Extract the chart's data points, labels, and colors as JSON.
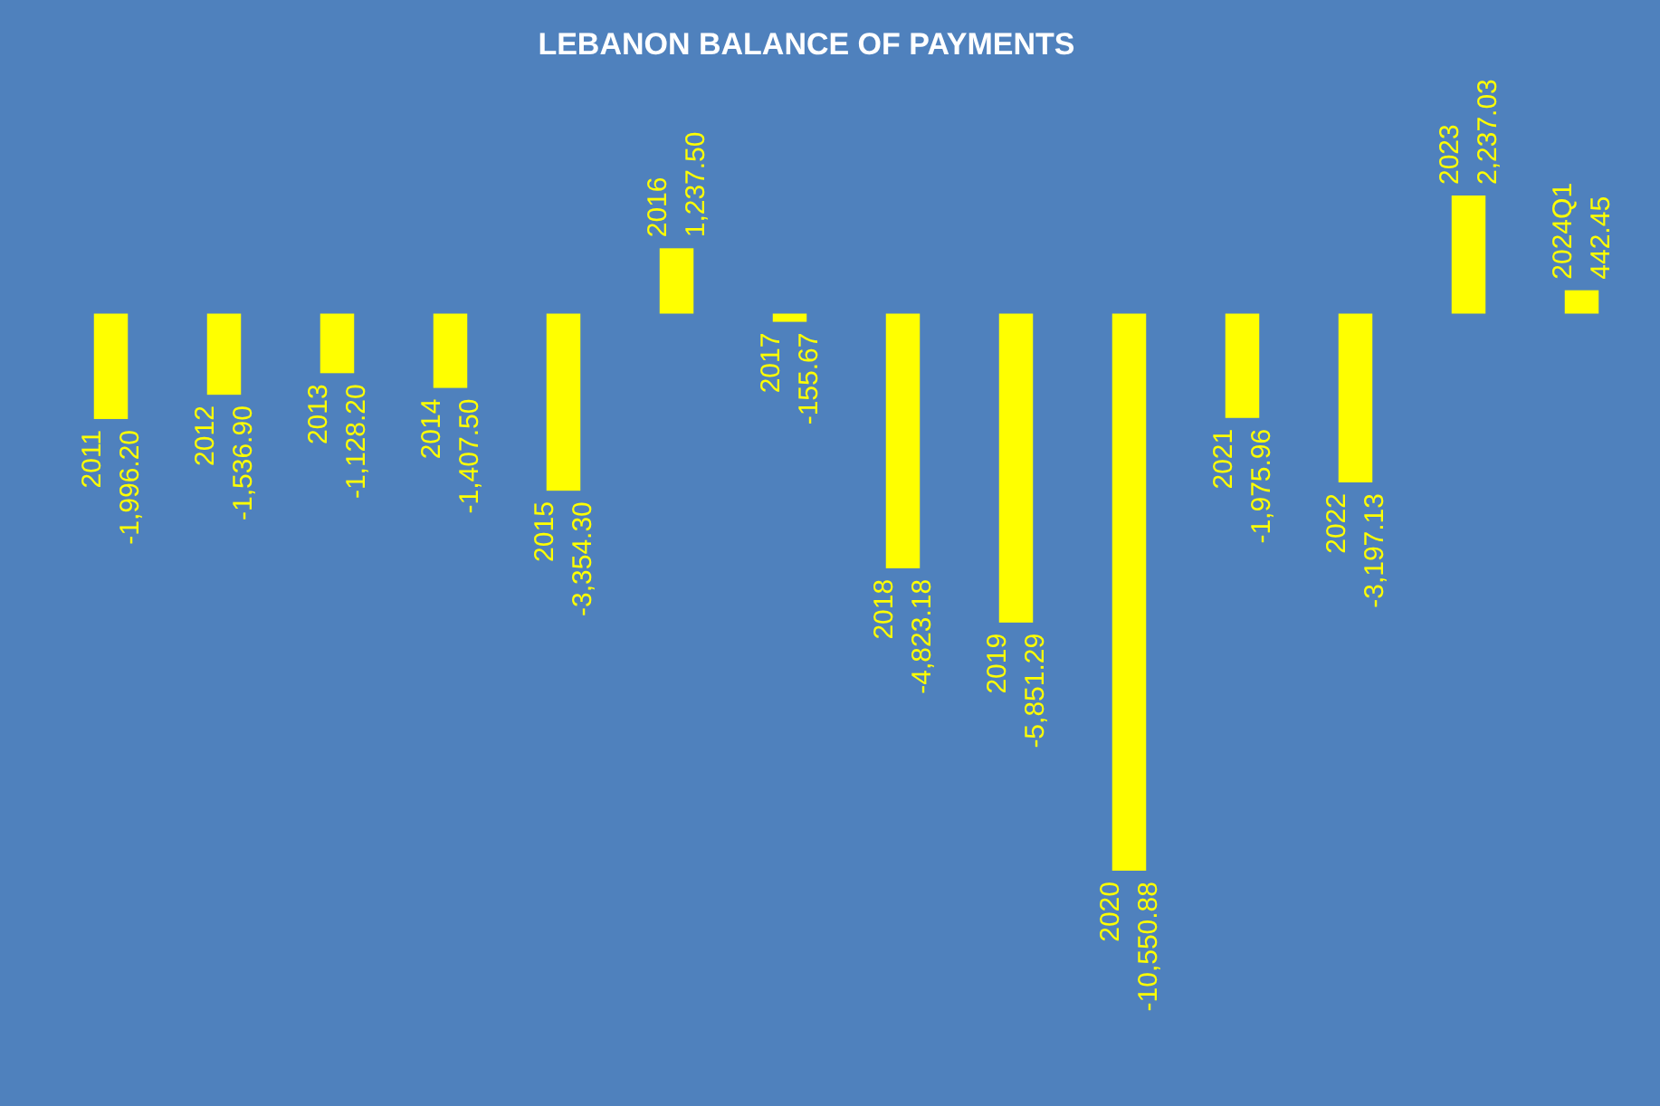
{
  "chart_data": {
    "type": "bar",
    "title": "LEBANON  BALANCE  OF PAYMENTS",
    "categories": [
      "2011",
      "2012",
      "2013",
      "2014",
      "2015",
      "2016",
      "2017",
      "2018",
      "2019",
      "2020",
      "2021",
      "2022",
      "2023",
      "2024Q1"
    ],
    "values": [
      -1996.2,
      -1536.9,
      -1128.2,
      -1407.5,
      -3354.3,
      1237.5,
      -155.67,
      -4823.18,
      -5851.29,
      -10550.88,
      -1975.96,
      -3197.13,
      2237.03,
      442.45
    ],
    "value_labels": [
      "-1,996.20",
      "-1,536.90",
      "-1,128.20",
      "-1,407.50",
      "-3,354.30",
      "1,237.50",
      "-155.67",
      "-4,823.18",
      "-5,851.29",
      "-10,550.88",
      "-1,975.96",
      "-3,197.13",
      "2,237.03",
      "442.45"
    ],
    "color": "#ffff00"
  }
}
